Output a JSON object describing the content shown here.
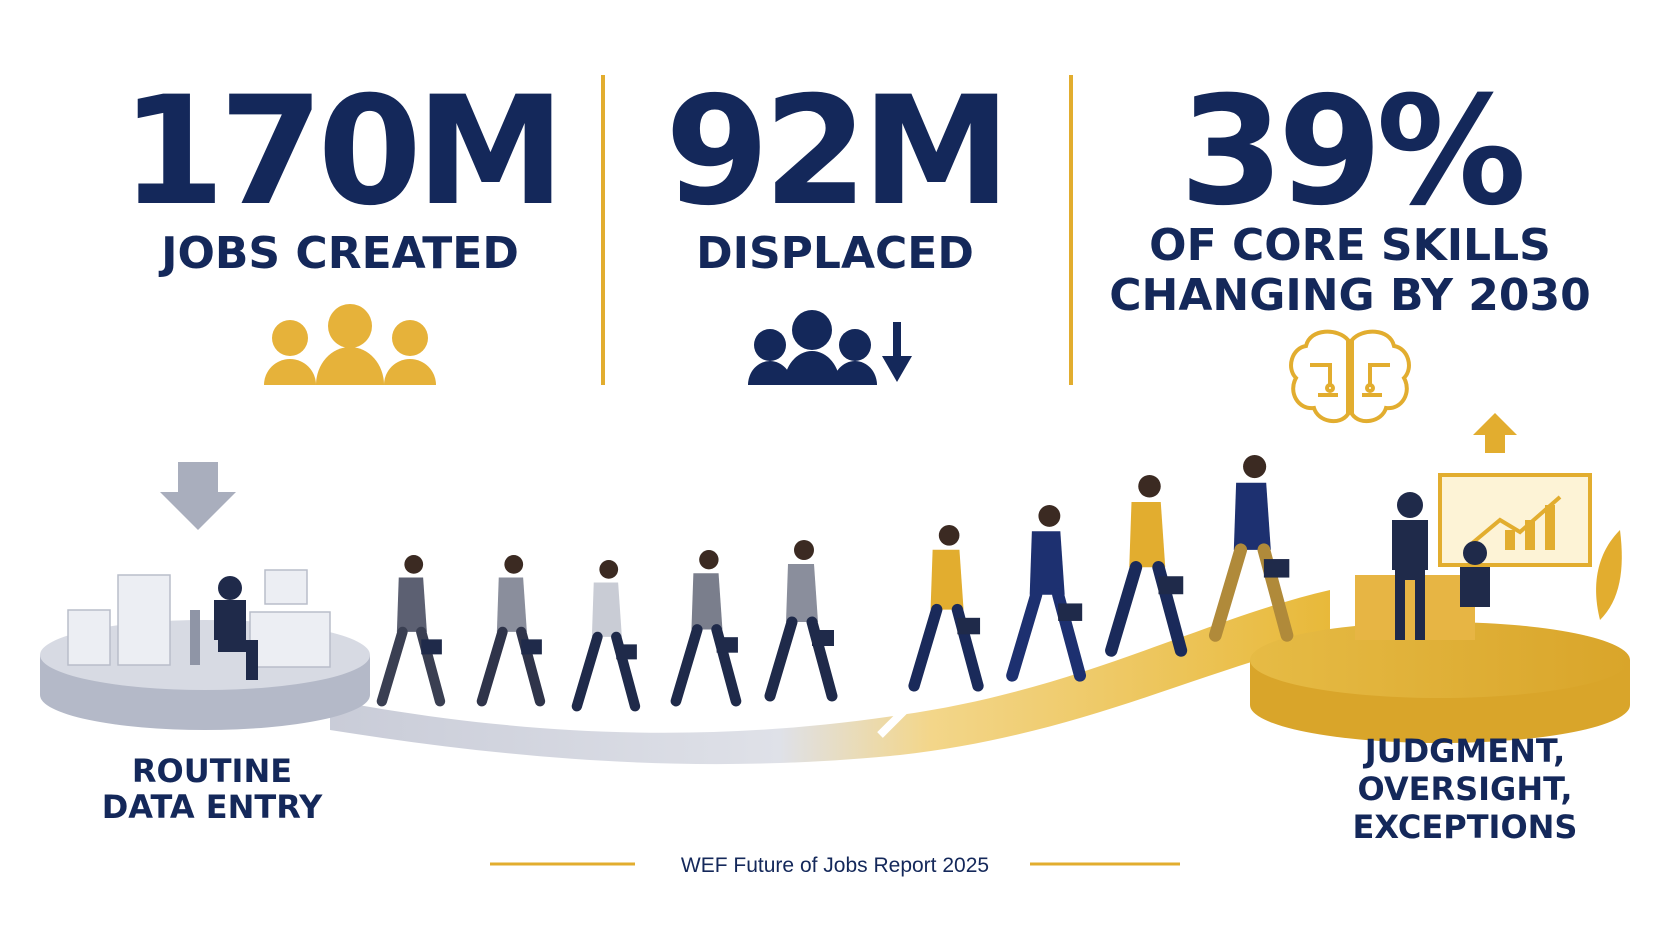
{
  "stats": [
    {
      "value": "170M",
      "label": [
        "JOBS CREATED"
      ]
    },
    {
      "value": "92M",
      "label": [
        "DISPLACED"
      ]
    },
    {
      "value": "39%",
      "label": [
        "OF CORE SKILLS",
        "CHANGING BY 2030"
      ]
    }
  ],
  "journey": {
    "from": [
      "ROUTINE",
      "DATA ENTRY"
    ],
    "to": [
      "JUDGMENT,",
      "OVERSIGHT,",
      "EXCEPTIONS"
    ]
  },
  "source": "WEF Future of Jobs Report 2025"
}
